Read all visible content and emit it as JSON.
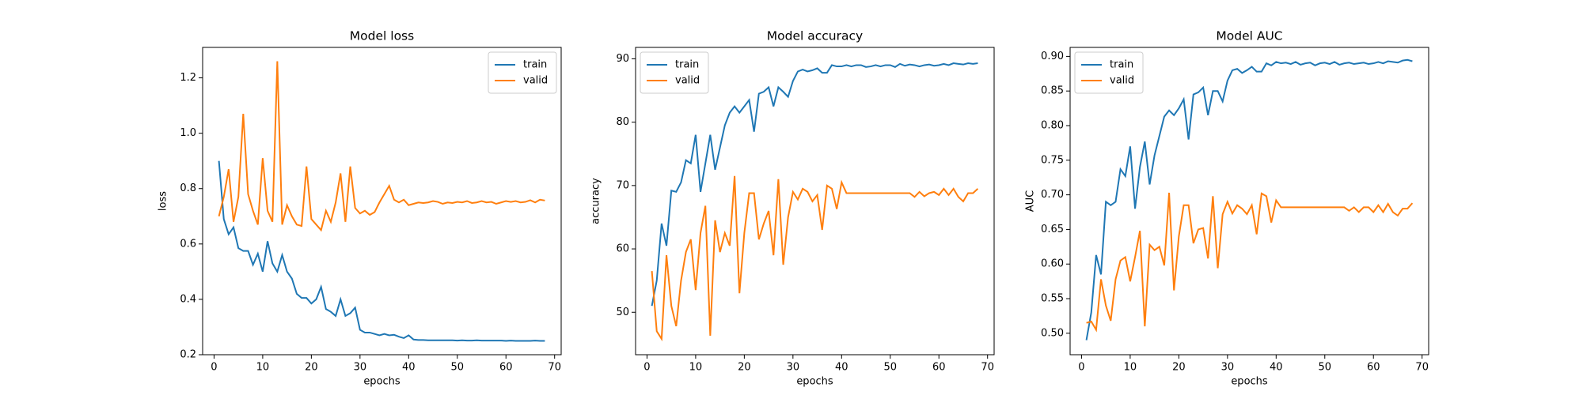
{
  "chart_data": [
    {
      "type": "line",
      "title": "Model loss",
      "xlabel": "epochs",
      "ylabel": "loss",
      "x": [
        1,
        2,
        3,
        4,
        5,
        6,
        7,
        8,
        9,
        10,
        11,
        12,
        13,
        14,
        15,
        16,
        17,
        18,
        19,
        20,
        21,
        22,
        23,
        24,
        25,
        26,
        27,
        28,
        29,
        30,
        31,
        32,
        33,
        34,
        35,
        36,
        37,
        38,
        39,
        40,
        41,
        42,
        43,
        44,
        45,
        46,
        47,
        48,
        49,
        50,
        51,
        52,
        53,
        54,
        55,
        56,
        57,
        58,
        59,
        60,
        61,
        62,
        63,
        64,
        65,
        66,
        67,
        68
      ],
      "xlim": [
        -2.35,
        71.35
      ],
      "xticks": [
        0,
        10,
        20,
        30,
        40,
        50,
        60,
        70
      ],
      "ylim": [
        0.2,
        1.31
      ],
      "yticks": [
        0.2,
        0.4,
        0.6,
        0.8,
        {
          "value": 1,
          "label": "1.0"
        },
        1.2
      ],
      "legend": "upper right",
      "series": [
        {
          "name": "train",
          "color": "#1f77b4",
          "values": [
            0.9,
            0.69,
            0.635,
            0.66,
            0.585,
            0.575,
            0.575,
            0.525,
            0.565,
            0.5,
            0.61,
            0.53,
            0.5,
            0.56,
            0.5,
            0.475,
            0.42,
            0.405,
            0.405,
            0.385,
            0.4,
            0.445,
            0.365,
            0.355,
            0.34,
            0.4,
            0.34,
            0.35,
            0.37,
            0.29,
            0.28,
            0.28,
            0.275,
            0.27,
            0.275,
            0.27,
            0.272,
            0.265,
            0.26,
            0.27,
            0.255,
            0.253,
            0.253,
            0.252,
            0.252,
            0.252,
            0.252,
            0.252,
            0.252,
            0.251,
            0.252,
            0.251,
            0.251,
            0.252,
            0.251,
            0.251,
            0.251,
            0.251,
            0.251,
            0.25,
            0.251,
            0.25,
            0.25,
            0.25,
            0.25,
            0.251,
            0.25,
            0.25
          ]
        },
        {
          "name": "valid",
          "color": "#ff7f0e",
          "values": [
            0.7,
            0.77,
            0.87,
            0.68,
            0.77,
            1.07,
            0.78,
            0.72,
            0.67,
            0.91,
            0.72,
            0.68,
            1.26,
            0.67,
            0.74,
            0.7,
            0.67,
            0.665,
            0.88,
            0.69,
            0.67,
            0.65,
            0.72,
            0.68,
            0.75,
            0.855,
            0.68,
            0.88,
            0.73,
            0.71,
            0.72,
            0.705,
            0.715,
            0.75,
            0.78,
            0.81,
            0.76,
            0.75,
            0.76,
            0.74,
            0.745,
            0.75,
            0.748,
            0.75,
            0.755,
            0.752,
            0.745,
            0.75,
            0.748,
            0.752,
            0.75,
            0.755,
            0.748,
            0.75,
            0.755,
            0.75,
            0.752,
            0.745,
            0.75,
            0.755,
            0.752,
            0.755,
            0.75,
            0.752,
            0.758,
            0.75,
            0.76,
            0.757
          ]
        }
      ]
    },
    {
      "type": "line",
      "title": "Model accuracy",
      "xlabel": "epochs",
      "ylabel": "accuracy",
      "x": [
        1,
        2,
        3,
        4,
        5,
        6,
        7,
        8,
        9,
        10,
        11,
        12,
        13,
        14,
        15,
        16,
        17,
        18,
        19,
        20,
        21,
        22,
        23,
        24,
        25,
        26,
        27,
        28,
        29,
        30,
        31,
        32,
        33,
        34,
        35,
        36,
        37,
        38,
        39,
        40,
        41,
        42,
        43,
        44,
        45,
        46,
        47,
        48,
        49,
        50,
        51,
        52,
        53,
        54,
        55,
        56,
        57,
        58,
        59,
        60,
        61,
        62,
        63,
        64,
        65,
        66,
        67,
        68
      ],
      "xlim": [
        -2.35,
        71.35
      ],
      "xticks": [
        0,
        10,
        20,
        30,
        40,
        50,
        60,
        70
      ],
      "ylim": [
        43.3,
        91.8
      ],
      "yticks": [
        50,
        60,
        70,
        80,
        90
      ],
      "legend": "upper left",
      "series": [
        {
          "name": "train",
          "color": "#1f77b4",
          "values": [
            51,
            55,
            64,
            60.5,
            69.2,
            69,
            70.5,
            74,
            73.5,
            78,
            69,
            73.5,
            78,
            72.5,
            76,
            79.5,
            81.5,
            82.5,
            81.5,
            82.5,
            83.5,
            78.5,
            84.5,
            84.8,
            85.5,
            82.5,
            85.5,
            84.8,
            84,
            86.5,
            88,
            88.3,
            88,
            88.2,
            88.5,
            87.8,
            87.8,
            89,
            88.8,
            88.8,
            89,
            88.8,
            89,
            89,
            88.7,
            88.8,
            89,
            88.8,
            89,
            89,
            88.7,
            89.2,
            88.9,
            89.1,
            89,
            88.8,
            89,
            89.1,
            88.9,
            89,
            89.2,
            89,
            89.3,
            89.2,
            89.1,
            89.3,
            89.2,
            89.3
          ]
        },
        {
          "name": "valid",
          "color": "#ff7f0e",
          "values": [
            56.5,
            47,
            45.8,
            59,
            51,
            47.8,
            55,
            59.5,
            61.5,
            53.5,
            62.5,
            66.8,
            46.3,
            64.5,
            59.5,
            62.5,
            60.5,
            71.5,
            53,
            62.5,
            68.8,
            68.8,
            61.5,
            64,
            66,
            59,
            71,
            57.5,
            65,
            69,
            67.8,
            69.5,
            69,
            67.5,
            68.5,
            63,
            70,
            69.5,
            66.3,
            70.5,
            68.8,
            68.8,
            68.8,
            68.8,
            68.8,
            68.8,
            68.8,
            68.8,
            68.8,
            68.8,
            68.8,
            68.8,
            68.8,
            68.8,
            68.2,
            69,
            68.3,
            68.8,
            69,
            68.5,
            69.5,
            68.5,
            69.5,
            68.2,
            67.5,
            68.8,
            68.8,
            69.5
          ]
        }
      ]
    },
    {
      "type": "line",
      "title": "Model AUC",
      "xlabel": "epochs",
      "ylabel": "AUC",
      "x": [
        1,
        2,
        3,
        4,
        5,
        6,
        7,
        8,
        9,
        10,
        11,
        12,
        13,
        14,
        15,
        16,
        17,
        18,
        19,
        20,
        21,
        22,
        23,
        24,
        25,
        26,
        27,
        28,
        29,
        30,
        31,
        32,
        33,
        34,
        35,
        36,
        37,
        38,
        39,
        40,
        41,
        42,
        43,
        44,
        45,
        46,
        47,
        48,
        49,
        50,
        51,
        52,
        53,
        54,
        55,
        56,
        57,
        58,
        59,
        60,
        61,
        62,
        63,
        64,
        65,
        66,
        67,
        68
      ],
      "xlim": [
        -2.35,
        71.35
      ],
      "xticks": [
        0,
        10,
        20,
        30,
        40,
        50,
        60,
        70
      ],
      "ylim": [
        0.469,
        0.913
      ],
      "yticks": [
        {
          "value": 0.5,
          "label": "0.50"
        },
        0.55,
        {
          "value": 0.6,
          "label": "0.60"
        },
        0.65,
        {
          "value": 0.7,
          "label": "0.70"
        },
        0.75,
        {
          "value": 0.8,
          "label": "0.80"
        },
        0.85,
        {
          "value": 0.9,
          "label": "0.90"
        }
      ],
      "legend": "upper left",
      "series": [
        {
          "name": "train",
          "color": "#1f77b4",
          "values": [
            0.49,
            0.53,
            0.613,
            0.585,
            0.69,
            0.685,
            0.69,
            0.737,
            0.727,
            0.77,
            0.68,
            0.74,
            0.777,
            0.715,
            0.757,
            0.785,
            0.813,
            0.822,
            0.815,
            0.825,
            0.838,
            0.78,
            0.845,
            0.848,
            0.855,
            0.815,
            0.85,
            0.85,
            0.835,
            0.865,
            0.88,
            0.882,
            0.876,
            0.88,
            0.885,
            0.878,
            0.878,
            0.89,
            0.887,
            0.892,
            0.89,
            0.891,
            0.889,
            0.892,
            0.888,
            0.89,
            0.891,
            0.887,
            0.89,
            0.891,
            0.889,
            0.892,
            0.888,
            0.89,
            0.891,
            0.889,
            0.89,
            0.891,
            0.889,
            0.89,
            0.892,
            0.89,
            0.893,
            0.892,
            0.891,
            0.894,
            0.895,
            0.893
          ]
        },
        {
          "name": "valid",
          "color": "#ff7f0e",
          "values": [
            0.515,
            0.517,
            0.505,
            0.578,
            0.54,
            0.518,
            0.578,
            0.605,
            0.61,
            0.575,
            0.61,
            0.648,
            0.51,
            0.628,
            0.62,
            0.625,
            0.598,
            0.703,
            0.562,
            0.64,
            0.685,
            0.685,
            0.63,
            0.65,
            0.652,
            0.608,
            0.698,
            0.594,
            0.672,
            0.69,
            0.673,
            0.685,
            0.68,
            0.672,
            0.685,
            0.643,
            0.702,
            0.698,
            0.66,
            0.692,
            0.682,
            0.682,
            0.682,
            0.682,
            0.682,
            0.682,
            0.682,
            0.682,
            0.682,
            0.682,
            0.682,
            0.682,
            0.682,
            0.682,
            0.677,
            0.682,
            0.675,
            0.682,
            0.682,
            0.675,
            0.685,
            0.675,
            0.687,
            0.675,
            0.67,
            0.68,
            0.68,
            0.688
          ]
        }
      ]
    }
  ]
}
